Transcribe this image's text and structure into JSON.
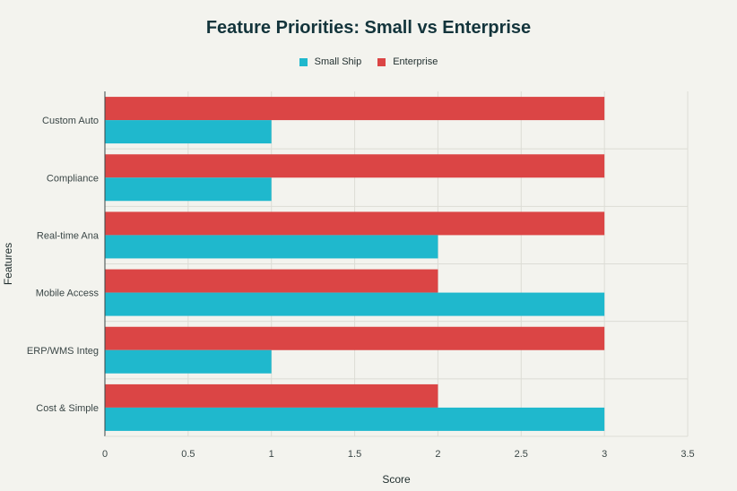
{
  "chart_data": {
    "type": "bar",
    "orientation": "horizontal",
    "title": "Feature Priorities: Small vs Enterprise",
    "xlabel": "Score",
    "ylabel": "Features",
    "categories": [
      "Custom Auto",
      "Compliance",
      "Real-time Ana",
      "Mobile Access",
      "ERP/WMS Integ",
      "Cost & Simple"
    ],
    "series": [
      {
        "name": "Small Ship",
        "color": "#1fb8cd",
        "values": [
          1,
          1,
          2,
          3,
          1,
          3
        ]
      },
      {
        "name": "Enterprise",
        "color": "#db4545",
        "values": [
          3,
          3,
          3,
          2,
          3,
          2
        ]
      }
    ],
    "xlim": [
      0,
      3.5
    ],
    "xticks": [
      "0",
      "0.5",
      "1",
      "1.5",
      "2",
      "2.5",
      "3",
      "3.5"
    ],
    "grid": true,
    "legend_position": "top-center"
  }
}
